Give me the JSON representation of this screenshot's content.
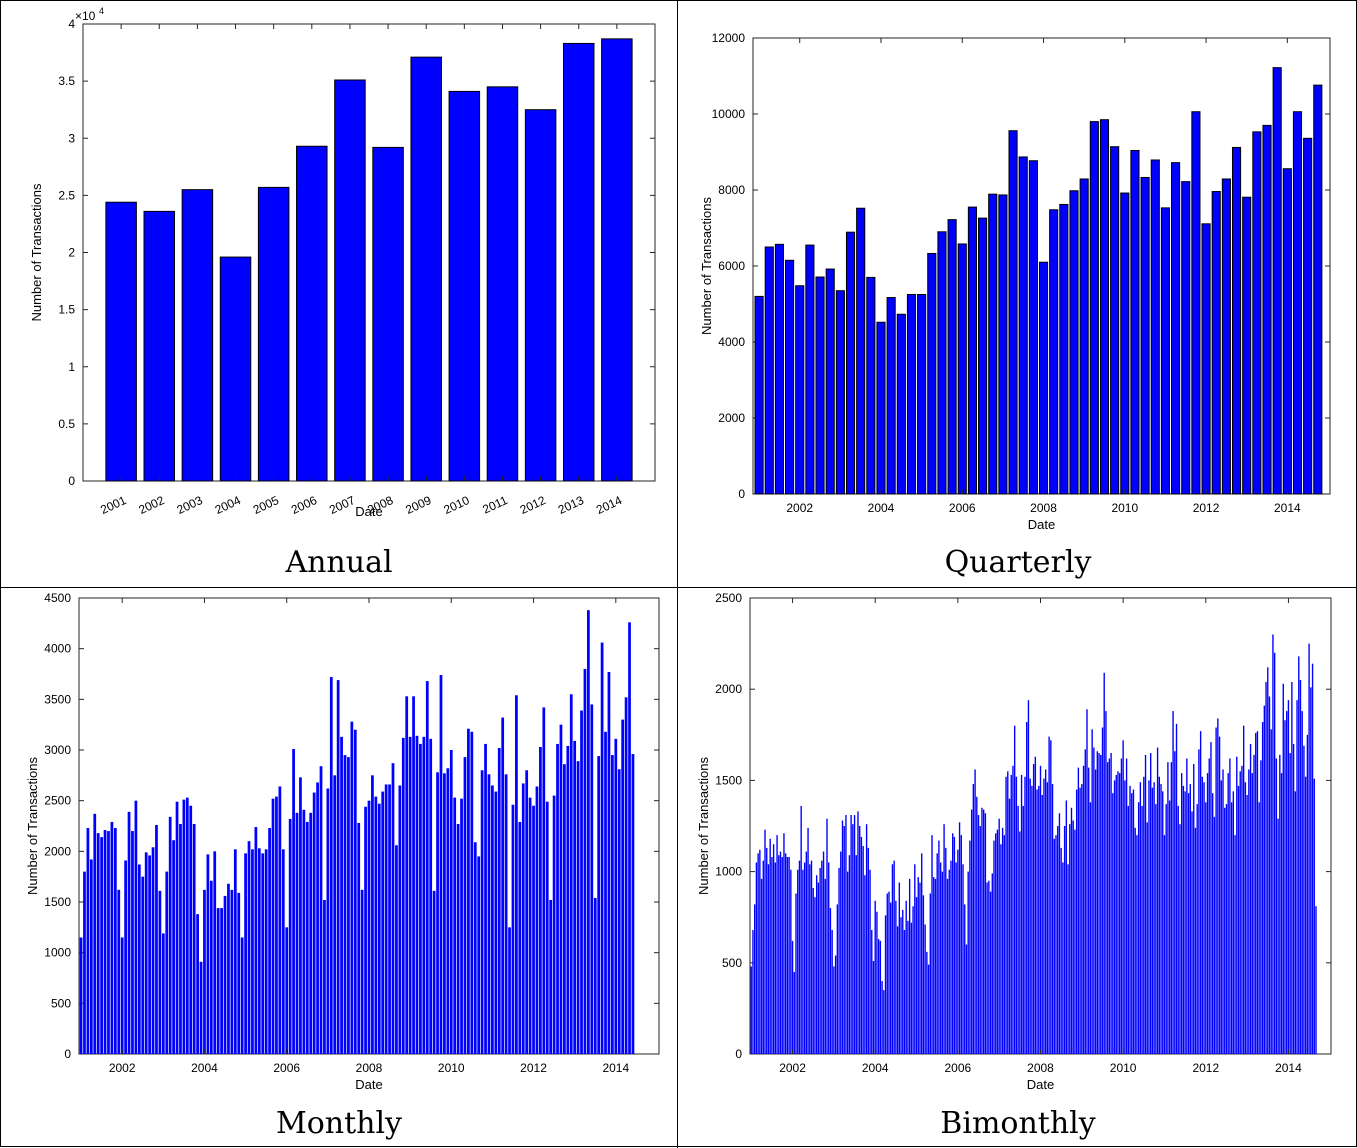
{
  "chart_data": [
    {
      "type": "bar",
      "caption": "Annual",
      "xlabel": "Date",
      "ylabel": "Number of Transactions",
      "yexp_label": "×10",
      "yexp_power": "4",
      "yticks": [
        "0",
        "0.5",
        "1",
        "1.5",
        "2",
        "2.5",
        "3",
        "3.5",
        "4"
      ],
      "ylim": [
        0,
        40000
      ],
      "categories": [
        "2001",
        "2002",
        "2003",
        "2004",
        "2005",
        "2006",
        "2007",
        "2008",
        "2009",
        "2010",
        "2011",
        "2012",
        "2013",
        "2014"
      ],
      "values": [
        24400,
        23600,
        25500,
        19600,
        25700,
        29300,
        35100,
        29200,
        37100,
        34100,
        34500,
        32500,
        38300,
        38700
      ],
      "color": "#0000ff"
    },
    {
      "type": "bar",
      "caption": "Quarterly",
      "xlabel": "Date",
      "ylabel": "Number of Transactions",
      "yticks": [
        "0",
        "2000",
        "4000",
        "6000",
        "8000",
        "10000",
        "12000"
      ],
      "ylim": [
        0,
        12000
      ],
      "xticks": [
        "2002",
        "2004",
        "2006",
        "2008",
        "2010",
        "2012",
        "2014"
      ],
      "xlim": [
        2000.85,
        2015.05
      ],
      "x_start": 2001.0,
      "x_step": 0.25,
      "values": [
        5200,
        6500,
        6570,
        6150,
        5480,
        6550,
        5710,
        5920,
        5350,
        6890,
        7520,
        5700,
        4520,
        5170,
        4730,
        5250,
        5250,
        6330,
        6900,
        7220,
        6580,
        7550,
        7260,
        7890,
        7870,
        9560,
        8870,
        8770,
        6100,
        7480,
        7620,
        7980,
        8290,
        9800,
        9850,
        9140,
        7920,
        9040,
        8330,
        8790,
        7530,
        8720,
        8220,
        10060,
        7110,
        7960,
        8290,
        9120,
        7810,
        9530,
        9700,
        11220,
        8560,
        10060,
        9360,
        10760
      ],
      "color": "#0000ff"
    },
    {
      "type": "bar",
      "caption": "Monthly",
      "xlabel": "Date",
      "ylabel": "Number of Transactions",
      "yticks": [
        "0",
        "500",
        "1000",
        "1500",
        "2000",
        "2500",
        "3000",
        "3500",
        "4000",
        "4500"
      ],
      "ylim": [
        0,
        4500
      ],
      "xticks": [
        "2002",
        "2004",
        "2006",
        "2008",
        "2010",
        "2012",
        "2014"
      ],
      "xlim": [
        2000.95,
        2015.05
      ],
      "x_start": 2001.0,
      "x_step": 0.0833333,
      "values": [
        1150,
        1800,
        2230,
        1920,
        2370,
        2180,
        2140,
        2210,
        2200,
        2290,
        2230,
        1620,
        1150,
        1910,
        2390,
        2200,
        2500,
        1870,
        1750,
        1990,
        1960,
        2040,
        2260,
        1610,
        1190,
        1800,
        2340,
        2110,
        2490,
        2270,
        2510,
        2530,
        2450,
        2270,
        1380,
        910,
        1620,
        1970,
        1710,
        2000,
        1440,
        1440,
        1560,
        1680,
        1620,
        2020,
        1590,
        1150,
        1980,
        2100,
        2020,
        2240,
        2030,
        1980,
        2020,
        2230,
        2520,
        2540,
        2640,
        2020,
        1250,
        2320,
        3010,
        2380,
        2730,
        2410,
        2290,
        2380,
        2580,
        2680,
        2840,
        1520,
        2620,
        3720,
        2750,
        3690,
        3130,
        2950,
        2930,
        3280,
        3200,
        2280,
        1620,
        2440,
        2500,
        2750,
        2540,
        2470,
        2590,
        2660,
        2660,
        2870,
        2060,
        2650,
        3120,
        3530,
        3130,
        3530,
        3140,
        3060,
        3130,
        3680,
        3110,
        1610,
        2780,
        3740,
        2770,
        2820,
        3000,
        2530,
        2270,
        2520,
        2930,
        3210,
        3180,
        2090,
        1950,
        2800,
        3060,
        2760,
        2650,
        2590,
        3020,
        3320,
        2760,
        1250,
        2460,
        3540,
        2290,
        2670,
        2800,
        2530,
        2450,
        2640,
        3030,
        3420,
        2490,
        1520,
        2550,
        3060,
        3250,
        2860,
        3040,
        3550,
        3090,
        2890,
        3390,
        3800,
        4380,
        3450,
        1540,
        2940,
        4060,
        3180,
        3770,
        2950,
        3110,
        2810,
        3300,
        3520,
        4260,
        2960
      ],
      "color": "#0000ff"
    },
    {
      "type": "bar",
      "caption": "Bimonthly",
      "xlabel": "Date",
      "ylabel": "Number of Transactions",
      "yticks": [
        "0",
        "500",
        "1000",
        "1500",
        "2000",
        "2500"
      ],
      "ylim": [
        0,
        2500
      ],
      "xticks": [
        "2002",
        "2004",
        "2006",
        "2008",
        "2010",
        "2012",
        "2014"
      ],
      "xlim": [
        2000.97,
        2015.03
      ],
      "x_start": 2001.0,
      "x_step": 0.0416667,
      "values": [
        480,
        680,
        820,
        1050,
        1100,
        1120,
        960,
        1060,
        1230,
        1130,
        1040,
        1180,
        1080,
        1150,
        1050,
        1200,
        1090,
        1110,
        1080,
        1210,
        1100,
        1080,
        1080,
        1010,
        620,
        450,
        880,
        1010,
        1060,
        1360,
        1010,
        1050,
        1110,
        1240,
        1040,
        1060,
        910,
        860,
        980,
        940,
        1020,
        1060,
        1110,
        960,
        1290,
        1050,
        800,
        680,
        480,
        540,
        820,
        1020,
        1110,
        1280,
        1250,
        1310,
        1000,
        1090,
        1310,
        1260,
        1310,
        1090,
        1330,
        1250,
        1190,
        1140,
        980,
        1260,
        1130,
        1010,
        680,
        510,
        840,
        780,
        630,
        620,
        400,
        350,
        760,
        880,
        890,
        830,
        1040,
        1060,
        840,
        700,
        940,
        750,
        790,
        680,
        840,
        730,
        960,
        720,
        810,
        1040,
        860,
        970,
        940,
        1100,
        870,
        710,
        560,
        490,
        880,
        1200,
        970,
        960,
        1100,
        1170,
        1050,
        1000,
        1260,
        1130,
        960,
        1010,
        1060,
        1210,
        1190,
        1050,
        1120,
        1270,
        1200,
        1040,
        820,
        600,
        1000,
        1170,
        1340,
        1480,
        1560,
        1410,
        1310,
        1250,
        1350,
        1340,
        1320,
        940,
        950,
        890,
        990,
        1170,
        1210,
        1230,
        1290,
        1150,
        1240,
        1200,
        1520,
        1550,
        1400,
        1530,
        1580,
        1800,
        1520,
        1360,
        1220,
        1530,
        1360,
        1520,
        1820,
        1940,
        1510,
        1470,
        1590,
        1630,
        1450,
        1470,
        1580,
        1420,
        1510,
        1560,
        1490,
        1740,
        1720,
        1480,
        1180,
        1200,
        1250,
        1320,
        1130,
        1050,
        1250,
        1390,
        1040,
        1260,
        1350,
        1280,
        1230,
        1450,
        1570,
        1460,
        1480,
        1580,
        1670,
        1890,
        1570,
        1380,
        1780,
        1680,
        1560,
        1660,
        1650,
        1640,
        1790,
        2090,
        1880,
        1600,
        1620,
        1650,
        1430,
        1500,
        1530,
        1550,
        1540,
        1620,
        1720,
        1500,
        1620,
        1360,
        1470,
        1430,
        1450,
        1240,
        1200,
        1380,
        1490,
        1360,
        1520,
        1640,
        1270,
        1500,
        1650,
        1460,
        1490,
        1370,
        1680,
        1520,
        1480,
        1440,
        1200,
        1370,
        1600,
        1390,
        1600,
        1880,
        1660,
        1810,
        1360,
        1260,
        1540,
        1470,
        1440,
        1620,
        1430,
        1480,
        1330,
        1590,
        1240,
        1370,
        1670,
        1770,
        1520,
        1490,
        1380,
        1540,
        1620,
        1710,
        1430,
        1300,
        1790,
        1840,
        1740,
        1500,
        1560,
        1350,
        1370,
        1540,
        1620,
        1380,
        1440,
        1200,
        1630,
        1470,
        1550,
        1580,
        1800,
        1490,
        1420,
        1560,
        1700,
        1540,
        1640,
        1760,
        1770,
        1380,
        1610,
        1820,
        1910,
        2040,
        2120,
        1960,
        1780,
        2300,
        2200,
        1620,
        1290,
        1640,
        1540,
        2030,
        1830,
        1880,
        1940,
        1650,
        2040,
        1700,
        1440,
        1940,
        2180,
        2050,
        1880,
        1690,
        1520,
        1750,
        2250,
        2010,
        2140,
        1510,
        810
      ],
      "color": "#0000ff"
    }
  ]
}
